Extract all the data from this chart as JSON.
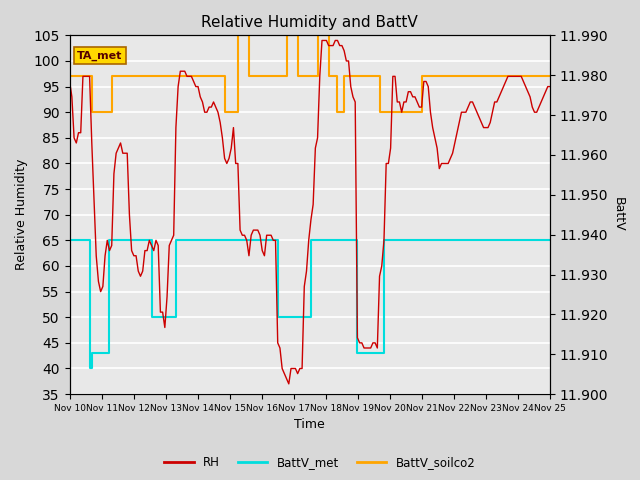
{
  "title": "Relative Humidity and BattV",
  "xlabel": "Time",
  "ylabel_left": "Relative Humidity",
  "ylabel_right": "BattV",
  "ylim_left": [
    35,
    105
  ],
  "ylim_right": [
    11.9,
    11.99
  ],
  "yticks_left": [
    35,
    40,
    45,
    50,
    55,
    60,
    65,
    70,
    75,
    80,
    85,
    90,
    95,
    100,
    105
  ],
  "yticks_right": [
    11.9,
    11.91,
    11.92,
    11.93,
    11.94,
    11.95,
    11.96,
    11.97,
    11.98,
    11.99
  ],
  "xtick_labels": [
    "Nov 10",
    "Nov 11",
    "Nov 12",
    "Nov 13",
    "Nov 14",
    "Nov 15",
    "Nov 16",
    "Nov 17",
    "Nov 18",
    "Nov 19",
    "Nov 20",
    "Nov 21",
    "Nov 22",
    "Nov 23",
    "Nov 24",
    "Nov 25"
  ],
  "bg_color": "#d8d8d8",
  "plot_bg_color": "#e8e8e8",
  "legend_label_box": "TA_met",
  "legend_box_color": "#ffd700",
  "rh_color": "#cc0000",
  "battv_met_color": "#00dddd",
  "battv_soilco2_color": "#ffa500",
  "grid_color": "white",
  "rh_data": [
    96,
    93,
    85,
    84,
    86,
    86,
    97,
    97,
    97,
    97,
    84,
    73,
    62,
    57,
    55,
    56,
    62,
    65,
    63,
    64,
    78,
    82,
    83,
    84,
    82,
    82,
    82,
    70,
    63,
    62,
    62,
    59,
    58,
    59,
    63,
    63,
    65,
    64,
    63,
    65,
    64,
    51,
    51,
    48,
    54,
    64,
    65,
    66,
    87,
    95,
    98,
    98,
    98,
    97,
    97,
    97,
    96,
    95,
    95,
    93,
    92,
    90,
    90,
    91,
    91,
    92,
    91,
    90,
    88,
    85,
    81,
    80,
    81,
    83,
    87,
    80,
    80,
    67,
    66,
    66,
    65,
    62,
    66,
    67,
    67,
    67,
    66,
    63,
    62,
    66,
    66,
    66,
    65,
    65,
    45,
    44,
    40,
    39,
    38,
    37,
    40,
    40,
    40,
    39,
    40,
    40,
    56,
    59,
    65,
    69,
    72,
    83,
    85,
    97,
    104,
    104,
    104,
    103,
    103,
    103,
    104,
    104,
    103,
    103,
    102,
    100,
    100,
    95,
    93,
    92,
    46,
    45,
    45,
    44,
    44,
    44,
    44,
    45,
    45,
    44,
    58,
    60,
    65,
    80,
    80,
    83,
    97,
    97,
    92,
    92,
    90,
    92,
    92,
    94,
    94,
    93,
    93,
    92,
    91,
    91,
    96,
    96,
    95,
    90,
    87,
    85,
    83,
    79,
    80,
    80,
    80,
    80,
    81,
    82,
    84,
    86,
    88,
    90,
    90,
    90,
    91,
    92,
    92,
    91,
    90,
    89,
    88,
    87,
    87,
    87,
    88,
    90,
    92,
    92,
    93,
    94,
    95,
    96,
    97,
    97,
    97,
    97,
    97,
    97,
    97,
    96,
    95,
    94,
    93,
    91,
    90,
    90,
    91,
    92,
    93,
    94,
    95,
    95
  ],
  "battv_met_data": [
    65,
    65,
    65,
    65,
    65,
    65,
    65,
    65,
    65,
    40,
    43,
    43,
    43,
    43,
    43,
    43,
    43,
    43,
    65,
    65,
    65,
    65,
    65,
    65,
    65,
    65,
    65,
    65,
    65,
    65,
    65,
    65,
    65,
    65,
    65,
    65,
    65,
    50,
    50,
    50,
    50,
    50,
    50,
    50,
    50,
    50,
    50,
    50,
    65,
    65,
    65,
    65,
    65,
    65,
    65,
    65,
    65,
    65,
    65,
    65,
    65,
    65,
    65,
    65,
    65,
    65,
    65,
    65,
    65,
    65,
    65,
    65,
    65,
    65,
    65,
    65,
    65,
    65,
    65,
    65,
    65,
    65,
    65,
    65,
    65,
    65,
    65,
    65,
    65,
    65,
    65,
    65,
    65,
    65,
    50,
    50,
    50,
    50,
    50,
    50,
    50,
    50,
    50,
    50,
    50,
    50,
    50,
    50,
    50,
    65,
    65,
    65,
    65,
    65,
    65,
    65,
    65,
    65,
    65,
    65,
    65,
    65,
    65,
    65,
    65,
    65,
    65,
    65,
    65,
    65,
    43,
    43,
    43,
    43,
    43,
    43,
    43,
    43,
    43,
    43,
    43,
    43,
    65,
    65,
    65,
    65,
    65,
    65,
    65,
    65,
    65,
    65,
    65,
    65,
    65,
    65,
    65,
    65,
    65,
    65,
    65,
    65,
    65,
    65,
    65,
    65,
    65,
    65,
    65,
    65,
    65,
    65,
    65,
    65,
    65,
    65,
    65,
    65,
    65,
    65,
    65,
    65,
    65,
    65,
    65,
    65,
    65,
    65,
    65,
    65,
    65,
    65,
    65,
    65,
    65,
    65,
    65,
    65,
    65,
    65,
    65,
    65,
    65,
    65,
    65,
    65,
    65,
    65,
    65,
    65,
    65,
    65,
    65,
    65,
    65,
    65,
    65,
    65
  ],
  "battv_soilco2_data": [
    97,
    97,
    97,
    97,
    97,
    97,
    97,
    97,
    97,
    97,
    90,
    90,
    90,
    90,
    90,
    90,
    90,
    90,
    90,
    97,
    97,
    97,
    97,
    97,
    97,
    97,
    97,
    97,
    97,
    97,
    97,
    97,
    97,
    97,
    97,
    97,
    97,
    97,
    97,
    97,
    97,
    97,
    97,
    97,
    97,
    97,
    97,
    97,
    97,
    97,
    97,
    97,
    97,
    97,
    97,
    97,
    97,
    97,
    97,
    97,
    97,
    97,
    97,
    97,
    97,
    97,
    97,
    97,
    97,
    97,
    90,
    90,
    90,
    90,
    90,
    90,
    105,
    105,
    105,
    105,
    105,
    97,
    97,
    97,
    97,
    97,
    97,
    97,
    97,
    97,
    97,
    97,
    97,
    97,
    97,
    97,
    97,
    97,
    105,
    105,
    105,
    105,
    105,
    97,
    97,
    97,
    97,
    97,
    97,
    97,
    97,
    97,
    105,
    105,
    105,
    105,
    105,
    97,
    97,
    97,
    97,
    90,
    90,
    90,
    97,
    97,
    97,
    97,
    97,
    97,
    97,
    97,
    97,
    97,
    97,
    97,
    97,
    97,
    97,
    97,
    90,
    90,
    90,
    90,
    90,
    90,
    90,
    90,
    90,
    90,
    90,
    90,
    90,
    90,
    90,
    90,
    90,
    90,
    90,
    97,
    97,
    97,
    97,
    97,
    97,
    97,
    97,
    97,
    97,
    97,
    97,
    97,
    97,
    97,
    97,
    97,
    97,
    97,
    97,
    97,
    97,
    97,
    97,
    97,
    97,
    97,
    97,
    97,
    97,
    97,
    97,
    97,
    97,
    97,
    97,
    97,
    97,
    97,
    97,
    97,
    97,
    97,
    97,
    97,
    97,
    97,
    97,
    97,
    97,
    97,
    97,
    97,
    97,
    97,
    97,
    97,
    97,
    97
  ]
}
